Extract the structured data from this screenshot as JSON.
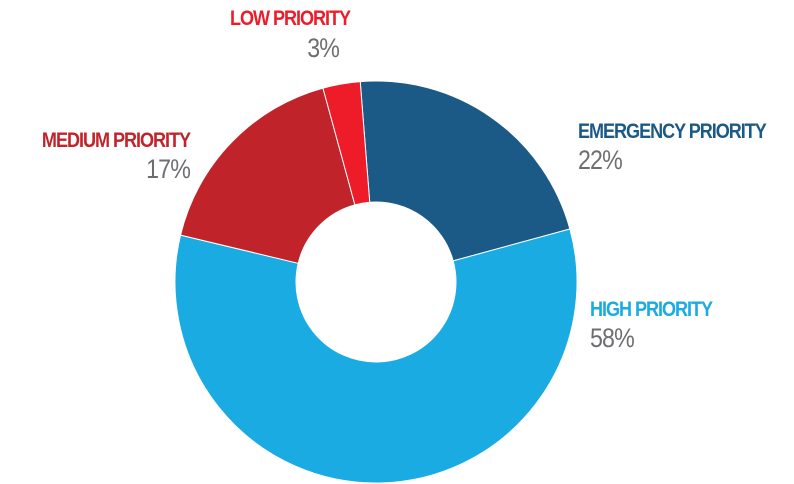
{
  "chart_data": {
    "type": "pie",
    "donut": true,
    "slices": [
      {
        "label": "EMERGENCY PRIORITY",
        "value": 22,
        "display": "22%",
        "color": "#1b5a86"
      },
      {
        "label": "HIGH PRIORITY",
        "value": 58,
        "display": "58%",
        "color": "#19abe2"
      },
      {
        "label": "MEDIUM PRIORITY",
        "value": 17,
        "display": "17%",
        "color": "#c1232a"
      },
      {
        "label": "LOW PRIORITY",
        "value": 3,
        "display": "3%",
        "color": "#ed1c28"
      }
    ],
    "percent_color": "#6d6e71"
  }
}
